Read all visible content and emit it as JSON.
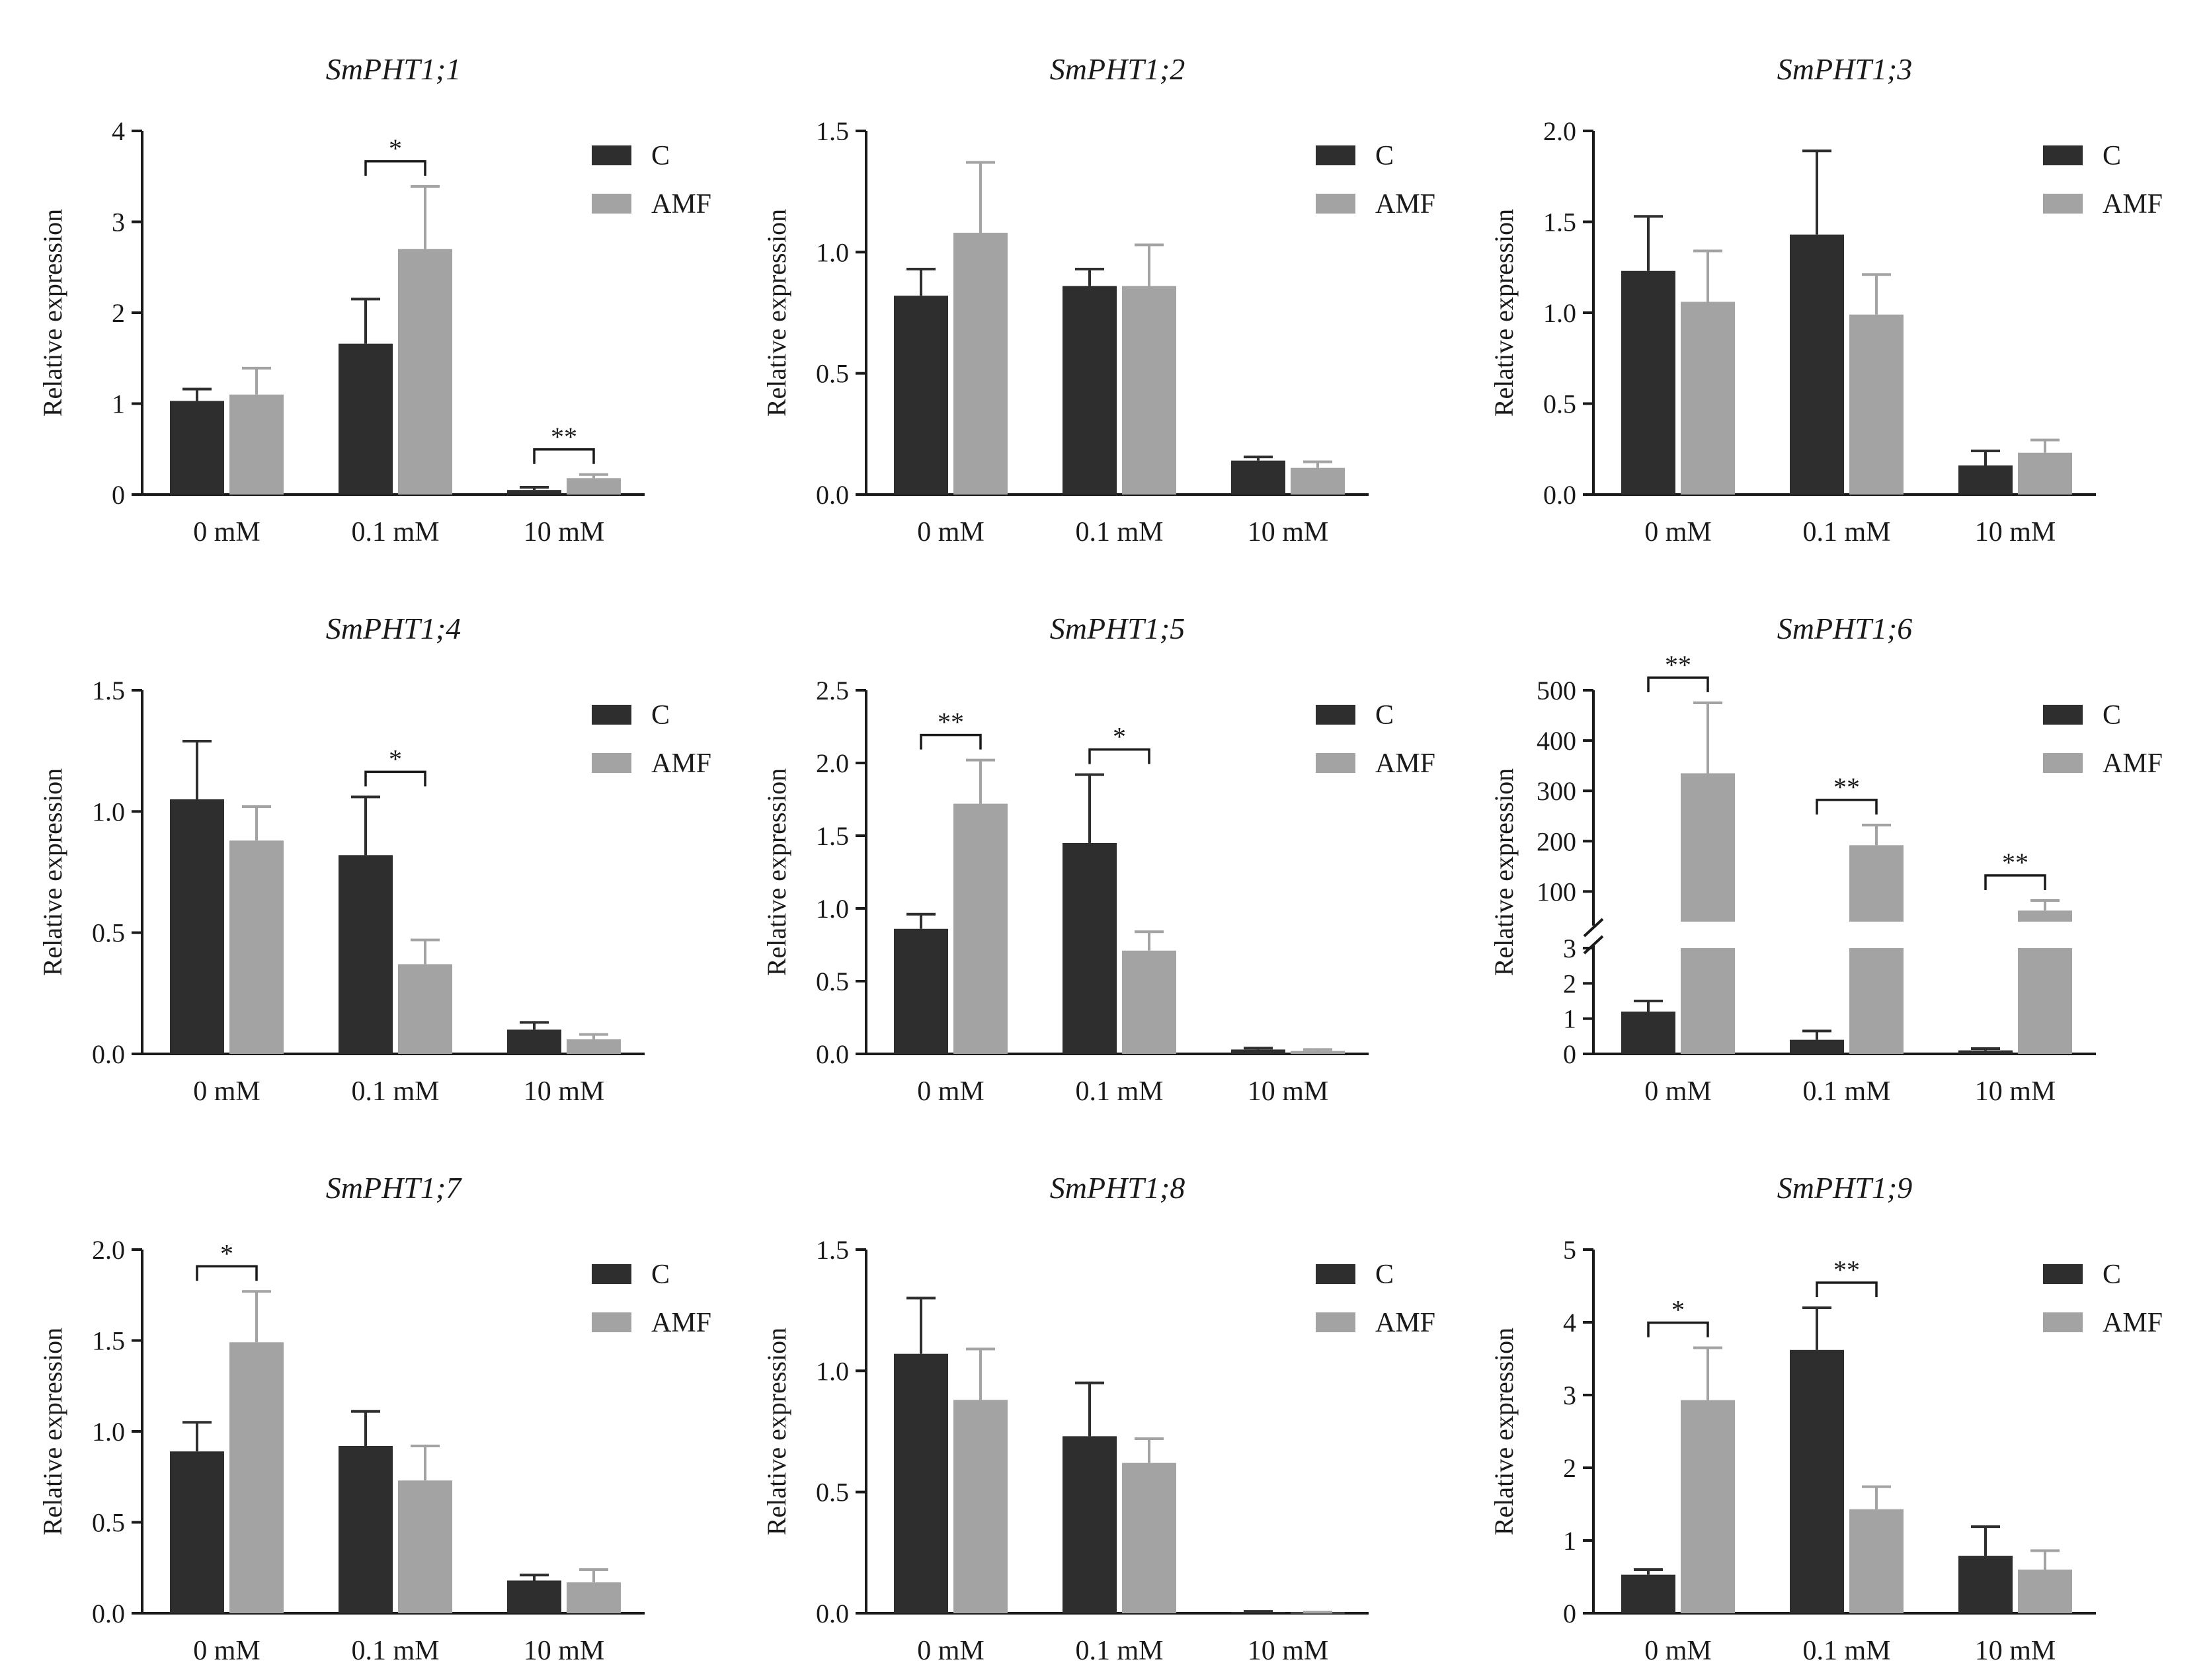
{
  "figure": {
    "type": "grouped bar charts with error bars",
    "panel_count": 9
  },
  "colors": {
    "C": "#2e2e2e",
    "AMF": "#a3a3a3",
    "axis": "#1a1a1a"
  },
  "chart_data": [
    {
      "type": "bar",
      "title": "SmPHT1;1",
      "ylabel": "Relative expression",
      "categories": [
        "0 mM",
        "0.1 mM",
        "10 mM"
      ],
      "ylim": [
        0,
        4
      ],
      "yticks": [
        "0",
        "1",
        "2",
        "3",
        "4"
      ],
      "legend": [
        "C",
        "AMF"
      ],
      "series": [
        {
          "name": "C",
          "values": [
            1.03,
            1.66,
            0.05
          ],
          "errors": [
            0.13,
            0.49,
            0.03
          ]
        },
        {
          "name": "AMF",
          "values": [
            1.1,
            2.7,
            0.18
          ],
          "errors": [
            0.29,
            0.69,
            0.04
          ]
        }
      ],
      "significance": [
        {
          "category": 1,
          "label": "*"
        },
        {
          "category": 2,
          "label": "**"
        }
      ]
    },
    {
      "type": "bar",
      "title": "SmPHT1;2",
      "ylabel": "Relative expression",
      "categories": [
        "0 mM",
        "0.1 mM",
        "10 mM"
      ],
      "ylim": [
        0,
        1.5
      ],
      "yticks": [
        "0.0",
        "0.5",
        "1.0",
        "1.5"
      ],
      "legend": [
        "C",
        "AMF"
      ],
      "series": [
        {
          "name": "C",
          "values": [
            0.82,
            0.86,
            0.14
          ],
          "errors": [
            0.11,
            0.07,
            0.015
          ]
        },
        {
          "name": "AMF",
          "values": [
            1.08,
            0.86,
            0.11
          ],
          "errors": [
            0.29,
            0.17,
            0.025
          ]
        }
      ],
      "significance": []
    },
    {
      "type": "bar",
      "title": "SmPHT1;3",
      "ylabel": "Relative expression",
      "categories": [
        "0 mM",
        "0.1 mM",
        "10 mM"
      ],
      "ylim": [
        0,
        2.0
      ],
      "yticks": [
        "0.0",
        "0.5",
        "1.0",
        "1.5",
        "2.0"
      ],
      "legend": [
        "C",
        "AMF"
      ],
      "series": [
        {
          "name": "C",
          "values": [
            1.23,
            1.43,
            0.16
          ],
          "errors": [
            0.3,
            0.46,
            0.08
          ]
        },
        {
          "name": "AMF",
          "values": [
            1.06,
            0.99,
            0.23
          ],
          "errors": [
            0.28,
            0.22,
            0.07
          ]
        }
      ],
      "significance": []
    },
    {
      "type": "bar",
      "title": "SmPHT1;4",
      "ylabel": "Relative expression",
      "categories": [
        "0 mM",
        "0.1 mM",
        "10 mM"
      ],
      "ylim": [
        0,
        1.5
      ],
      "yticks": [
        "0.0",
        "0.5",
        "1.0",
        "1.5"
      ],
      "legend": [
        "C",
        "AMF"
      ],
      "series": [
        {
          "name": "C",
          "values": [
            1.05,
            0.82,
            0.1
          ],
          "errors": [
            0.24,
            0.24,
            0.03
          ]
        },
        {
          "name": "AMF",
          "values": [
            0.88,
            0.37,
            0.06
          ],
          "errors": [
            0.14,
            0.1,
            0.02
          ]
        }
      ],
      "significance": [
        {
          "category": 1,
          "label": "*"
        }
      ]
    },
    {
      "type": "bar",
      "title": "SmPHT1;5",
      "ylabel": "Relative expression",
      "categories": [
        "0 mM",
        "0.1 mM",
        "10 mM"
      ],
      "ylim": [
        0,
        2.5
      ],
      "yticks": [
        "0.0",
        "0.5",
        "1.0",
        "1.5",
        "2.0",
        "2.5"
      ],
      "legend": [
        "C",
        "AMF"
      ],
      "series": [
        {
          "name": "C",
          "values": [
            0.86,
            1.45,
            0.03
          ],
          "errors": [
            0.1,
            0.47,
            0.01
          ]
        },
        {
          "name": "AMF",
          "values": [
            1.72,
            0.71,
            0.02
          ],
          "errors": [
            0.3,
            0.13,
            0.01
          ]
        }
      ],
      "significance": [
        {
          "category": 0,
          "label": "**"
        },
        {
          "category": 1,
          "label": "*"
        }
      ]
    },
    {
      "type": "bar",
      "title": "SmPHT1;6",
      "ylabel": "Relative expression",
      "categories": [
        "0 mM",
        "0.1 mM",
        "10 mM"
      ],
      "ylim": [
        0,
        500
      ],
      "axis_break": [
        3,
        40
      ],
      "yticks_low": [
        "0",
        "1",
        "2",
        "3"
      ],
      "yticks_high": [
        "100",
        "200",
        "300",
        "400",
        "500"
      ],
      "legend": [
        "C",
        "AMF"
      ],
      "series": [
        {
          "name": "C",
          "values": [
            1.2,
            0.4,
            0.1
          ],
          "errors": [
            0.3,
            0.25,
            0.05
          ]
        },
        {
          "name": "AMF",
          "values": [
            335,
            192,
            62
          ],
          "errors": [
            140,
            40,
            20
          ]
        }
      ],
      "significance": [
        {
          "category": 0,
          "label": "**"
        },
        {
          "category": 1,
          "label": "**"
        },
        {
          "category": 2,
          "label": "**"
        }
      ]
    },
    {
      "type": "bar",
      "title": "SmPHT1;7",
      "ylabel": "Relative expression",
      "categories": [
        "0 mM",
        "0.1 mM",
        "10 mM"
      ],
      "ylim": [
        0,
        2.0
      ],
      "yticks": [
        "0.0",
        "0.5",
        "1.0",
        "1.5",
        "2.0"
      ],
      "legend": [
        "C",
        "AMF"
      ],
      "series": [
        {
          "name": "C",
          "values": [
            0.89,
            0.92,
            0.18
          ],
          "errors": [
            0.16,
            0.19,
            0.03
          ]
        },
        {
          "name": "AMF",
          "values": [
            1.49,
            0.73,
            0.17
          ],
          "errors": [
            0.28,
            0.19,
            0.07
          ]
        }
      ],
      "significance": [
        {
          "category": 0,
          "label": "*"
        }
      ]
    },
    {
      "type": "bar",
      "title": "SmPHT1;8",
      "ylabel": "Relative expression",
      "categories": [
        "0 mM",
        "0.1 mM",
        "10 mM"
      ],
      "ylim": [
        0,
        1.5
      ],
      "yticks": [
        "0.0",
        "0.5",
        "1.0",
        "1.5"
      ],
      "legend": [
        "C",
        "AMF"
      ],
      "series": [
        {
          "name": "C",
          "values": [
            1.07,
            0.73,
            0.005
          ],
          "errors": [
            0.23,
            0.22,
            0.003
          ]
        },
        {
          "name": "AMF",
          "values": [
            0.88,
            0.62,
            0.002
          ],
          "errors": [
            0.21,
            0.1,
            0.002
          ]
        }
      ],
      "significance": []
    },
    {
      "type": "bar",
      "title": "SmPHT1;9",
      "ylabel": "Relative expression",
      "categories": [
        "0 mM",
        "0.1 mM",
        "10 mM"
      ],
      "ylim": [
        0,
        5
      ],
      "yticks": [
        "0",
        "1",
        "2",
        "3",
        "4",
        "5"
      ],
      "legend": [
        "C",
        "AMF"
      ],
      "series": [
        {
          "name": "C",
          "values": [
            0.53,
            3.62,
            0.79
          ],
          "errors": [
            0.07,
            0.58,
            0.4
          ]
        },
        {
          "name": "AMF",
          "values": [
            2.93,
            1.43,
            0.6
          ],
          "errors": [
            0.72,
            0.31,
            0.26
          ]
        }
      ],
      "significance": [
        {
          "category": 0,
          "label": "*"
        },
        {
          "category": 1,
          "label": "**"
        }
      ]
    }
  ]
}
